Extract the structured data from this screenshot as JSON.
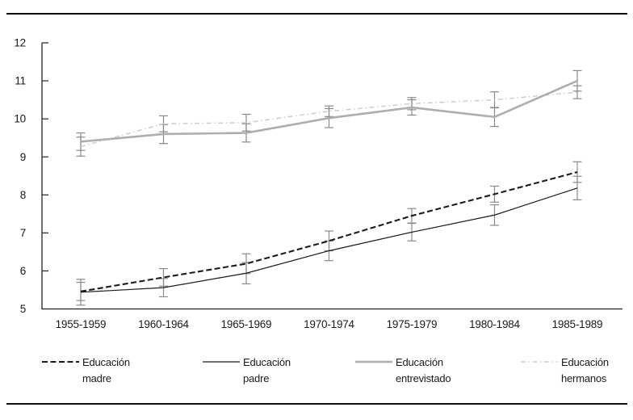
{
  "figure": {
    "top_rule": true,
    "bottom_rule": true,
    "background": "#ffffff",
    "rule_color": "#0d0d0d"
  },
  "chart_data": {
    "type": "line",
    "title": "",
    "xlabel": "",
    "ylabel": "",
    "grid": false,
    "error_bars": true,
    "legend_position": "bottom",
    "ylim": [
      5,
      12
    ],
    "yticks": [
      5,
      6,
      7,
      8,
      9,
      10,
      11,
      12
    ],
    "categories": [
      "1955-1959",
      "1960-1964",
      "1965-1969",
      "1970-1974",
      "1975-1979",
      "1980-1984",
      "1985-1989"
    ],
    "axis_color": "#222222",
    "error_bar_color": "#8a8a8a",
    "series": [
      {
        "key": "hermanos",
        "name": "Educación hermanos",
        "label_line1": "Educación",
        "label_line2": "hermanos",
        "style": "dashdot-light",
        "color": "#cdcdcd",
        "values": [
          9.27,
          9.87,
          9.9,
          10.2,
          10.4,
          10.5,
          10.7
        ],
        "errors": [
          0.25,
          0.21,
          0.22,
          0.14,
          0.16,
          0.21,
          0.17
        ]
      },
      {
        "key": "entrevistado",
        "name": "Educación entrevistado",
        "label_line1": "Educación",
        "label_line2": "entrevistado",
        "style": "solid-gray",
        "color": "#aeaeae",
        "values": [
          9.4,
          9.6,
          9.63,
          10.02,
          10.3,
          10.05,
          11.0
        ],
        "errors": [
          0.23,
          0.25,
          0.24,
          0.25,
          0.2,
          0.25,
          0.27
        ]
      },
      {
        "key": "padre",
        "name": "Educación padre",
        "label_line1": "Educación",
        "label_line2": "padre",
        "style": "solid-black",
        "color": "#1c1c1c",
        "values": [
          5.44,
          5.56,
          5.94,
          6.53,
          7.02,
          7.47,
          8.18
        ],
        "errors": [
          0.34,
          0.24,
          0.28,
          0.26,
          0.23,
          0.27,
          0.31
        ]
      },
      {
        "key": "madre",
        "name": "Educación madre",
        "label_line1": "Educación",
        "label_line2": "madre",
        "style": "dashed-black",
        "color": "#1c1c1c",
        "values": [
          5.46,
          5.83,
          6.19,
          6.79,
          7.45,
          8.02,
          8.6
        ],
        "errors": [
          0.24,
          0.23,
          0.26,
          0.26,
          0.19,
          0.21,
          0.27
        ]
      }
    ],
    "legend_order": [
      "madre",
      "padre",
      "entrevistado",
      "hermanos"
    ]
  }
}
